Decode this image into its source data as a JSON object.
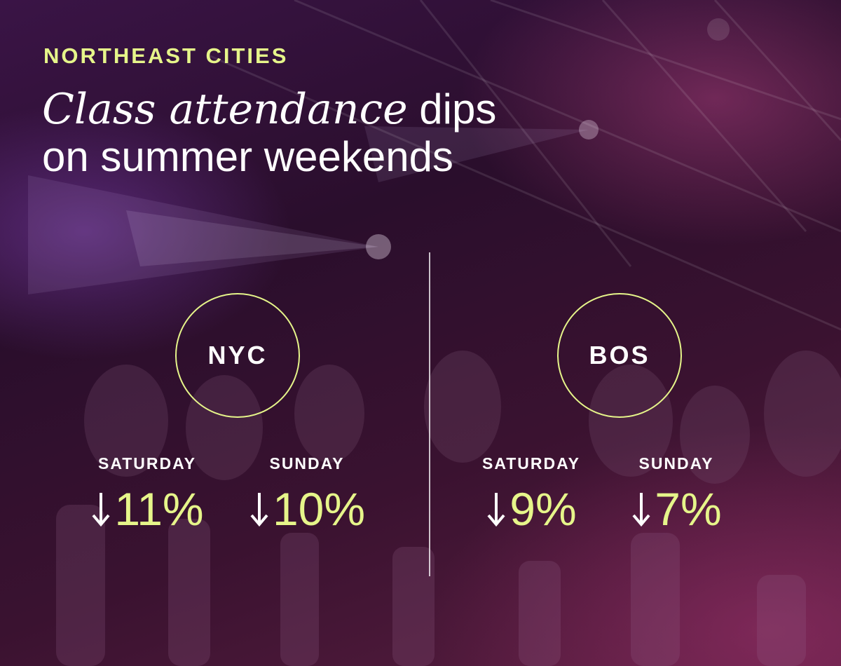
{
  "header": {
    "eyebrow": "NORTHEAST CITIES",
    "headline_italic": "Class attendance",
    "headline_rest_line1": " dips",
    "headline_line2": "on summer weekends"
  },
  "colors": {
    "accent": "#e6f58a",
    "text": "#ffffff",
    "background_dark": "#2a0f22",
    "background_magenta": "#8a2c5c"
  },
  "icons": {
    "decrease": "down-arrow-icon"
  },
  "cities": [
    {
      "name": "NYC",
      "stats": [
        {
          "day": "SATURDAY",
          "value": "11%"
        },
        {
          "day": "SUNDAY",
          "value": "10%"
        }
      ]
    },
    {
      "name": "BOS",
      "stats": [
        {
          "day": "SATURDAY",
          "value": "9%"
        },
        {
          "day": "SUNDAY",
          "value": "7%"
        }
      ]
    }
  ]
}
